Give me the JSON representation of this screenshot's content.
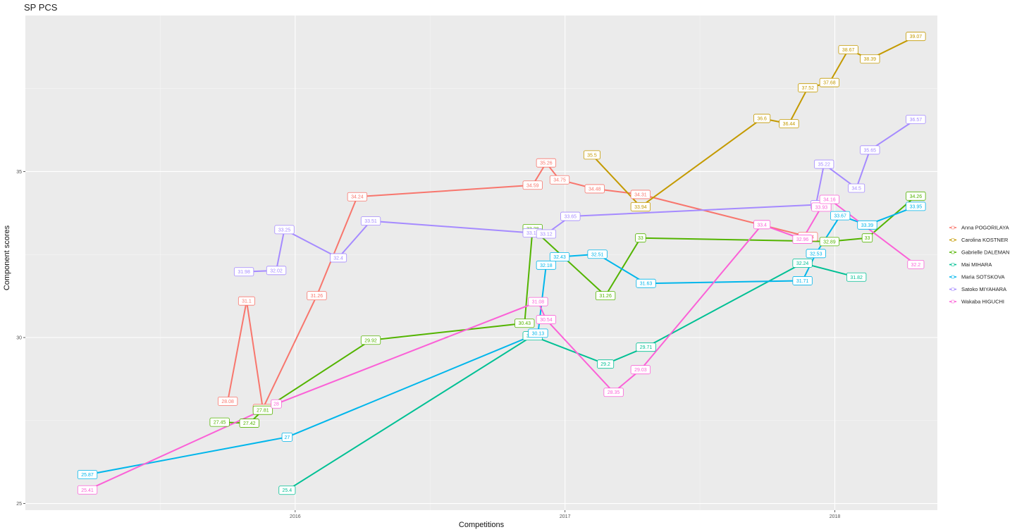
{
  "chart_data": {
    "type": "line",
    "title": "SP PCS",
    "xlabel": "Competitions",
    "ylabel": "Component scores",
    "x_ticks": [
      2016,
      2017,
      2018
    ],
    "y_ticks": [
      25,
      30,
      35
    ],
    "xlim": [
      2015.0,
      2018.38
    ],
    "ylim": [
      24.8,
      39.7
    ],
    "grid": true,
    "legend_position": "right",
    "series": [
      {
        "name": "Anna POGORILAYA",
        "color": "#F8766D",
        "points": [
          {
            "x": 2015.75,
            "y": 28.08,
            "label": "28.08"
          },
          {
            "x": 2015.82,
            "y": 31.1,
            "label": "31.1"
          },
          {
            "x": 2015.88,
            "y": 27.86,
            "label": "27.86"
          },
          {
            "x": 2016.08,
            "y": 31.26,
            "label": "31.26"
          },
          {
            "x": 2016.23,
            "y": 34.24,
            "label": "34.24"
          },
          {
            "x": 2016.88,
            "y": 34.59,
            "label": "34.59"
          },
          {
            "x": 2016.93,
            "y": 35.26,
            "label": "35.26"
          },
          {
            "x": 2016.98,
            "y": 34.75,
            "label": "34.75"
          },
          {
            "x": 2017.11,
            "y": 34.48,
            "label": "34.48"
          },
          {
            "x": 2017.28,
            "y": 34.31,
            "label": "34.31"
          },
          {
            "x": 2017.9,
            "y": 33.04,
            "label": "33.04"
          }
        ]
      },
      {
        "name": "Carolina KOSTNER",
        "color": "#C49A00",
        "points": [
          {
            "x": 2017.1,
            "y": 35.5,
            "label": "35.5"
          },
          {
            "x": 2017.28,
            "y": 33.94,
            "label": "33.94"
          },
          {
            "x": 2017.73,
            "y": 36.6,
            "label": "36.6"
          },
          {
            "x": 2017.83,
            "y": 36.44,
            "label": "36.44"
          },
          {
            "x": 2017.9,
            "y": 37.52,
            "label": "37.52"
          },
          {
            "x": 2017.98,
            "y": 37.68,
            "label": "37.68"
          },
          {
            "x": 2018.05,
            "y": 38.67,
            "label": "38.67"
          },
          {
            "x": 2018.13,
            "y": 38.39,
            "label": "38.39"
          },
          {
            "x": 2018.3,
            "y": 39.07,
            "label": "39.07"
          }
        ]
      },
      {
        "name": "Gabrielle DALEMAN",
        "color": "#53B400",
        "points": [
          {
            "x": 2015.72,
            "y": 27.45,
            "label": "27.45"
          },
          {
            "x": 2015.83,
            "y": 27.42,
            "label": "27.42"
          },
          {
            "x": 2015.88,
            "y": 27.81,
            "label": "27.81"
          },
          {
            "x": 2016.28,
            "y": 29.92,
            "label": "29.92"
          },
          {
            "x": 2016.85,
            "y": 30.43,
            "label": "30.43"
          },
          {
            "x": 2016.88,
            "y": 33.28,
            "label": "33.28"
          },
          {
            "x": 2017.15,
            "y": 31.26,
            "label": "31.26"
          },
          {
            "x": 2017.28,
            "y": 33,
            "label": "33"
          },
          {
            "x": 2017.98,
            "y": 32.89,
            "label": "32.89"
          },
          {
            "x": 2018.12,
            "y": 33,
            "label": "33"
          },
          {
            "x": 2018.3,
            "y": 34.26,
            "label": "34.26"
          }
        ]
      },
      {
        "name": "Mai MIHARA",
        "color": "#00C094",
        "points": [
          {
            "x": 2015.97,
            "y": 25.4,
            "label": "25.4"
          },
          {
            "x": 2016.88,
            "y": 30.05,
            "label": "30.05"
          },
          {
            "x": 2017.15,
            "y": 29.2,
            "label": "29.2"
          },
          {
            "x": 2017.3,
            "y": 29.71,
            "label": "29.71"
          },
          {
            "x": 2017.88,
            "y": 32.24,
            "label": "32.24"
          },
          {
            "x": 2018.08,
            "y": 31.82,
            "label": "31.82"
          }
        ]
      },
      {
        "name": "Maria SOTSKOVA",
        "color": "#00B6EB",
        "points": [
          {
            "x": 2015.23,
            "y": 25.87,
            "label": "25.87"
          },
          {
            "x": 2015.97,
            "y": 27,
            "label": "27"
          },
          {
            "x": 2016.9,
            "y": 30.13,
            "label": "30.13"
          },
          {
            "x": 2016.93,
            "y": 32.18,
            "label": "32.18"
          },
          {
            "x": 2016.98,
            "y": 32.43,
            "label": "32.43"
          },
          {
            "x": 2017.12,
            "y": 32.51,
            "label": "32.51"
          },
          {
            "x": 2017.3,
            "y": 31.63,
            "label": "31.63"
          },
          {
            "x": 2017.88,
            "y": 31.71,
            "label": "31.71"
          },
          {
            "x": 2017.93,
            "y": 32.53,
            "label": "32.53"
          },
          {
            "x": 2018.02,
            "y": 33.67,
            "label": "33.67"
          },
          {
            "x": 2018.12,
            "y": 33.39,
            "label": "33.39"
          },
          {
            "x": 2018.3,
            "y": 33.95,
            "label": "33.95"
          }
        ]
      },
      {
        "name": "Satoko MIYAHARA",
        "color": "#A58AFF",
        "points": [
          {
            "x": 2015.81,
            "y": 31.98,
            "label": "31.98"
          },
          {
            "x": 2015.93,
            "y": 32.02,
            "label": "32.02"
          },
          {
            "x": 2015.96,
            "y": 33.25,
            "label": "33.25"
          },
          {
            "x": 2016.16,
            "y": 32.4,
            "label": "32.4"
          },
          {
            "x": 2016.28,
            "y": 33.51,
            "label": "33.51"
          },
          {
            "x": 2016.88,
            "y": 33.15,
            "label": "33.15"
          },
          {
            "x": 2016.93,
            "y": 33.12,
            "label": "33.12"
          },
          {
            "x": 2017.02,
            "y": 33.65,
            "label": "33.65"
          },
          {
            "x": 2017.93,
            "y": 34,
            "label": "34"
          },
          {
            "x": 2017.96,
            "y": 35.22,
            "label": "35.22"
          },
          {
            "x": 2018.08,
            "y": 34.5,
            "label": "34.5"
          },
          {
            "x": 2018.13,
            "y": 35.65,
            "label": "35.65"
          },
          {
            "x": 2018.3,
            "y": 36.57,
            "label": "36.57"
          }
        ]
      },
      {
        "name": "Wakaba HIGUCHI",
        "color": "#FB61D7",
        "points": [
          {
            "x": 2015.23,
            "y": 25.41,
            "label": "25.41"
          },
          {
            "x": 2015.93,
            "y": 28,
            "label": "28"
          },
          {
            "x": 2016.9,
            "y": 31.08,
            "label": "31.08"
          },
          {
            "x": 2016.93,
            "y": 30.54,
            "label": "30.54"
          },
          {
            "x": 2017.18,
            "y": 28.35,
            "label": "28.35"
          },
          {
            "x": 2017.28,
            "y": 29.03,
            "label": "29.03"
          },
          {
            "x": 2017.73,
            "y": 33.4,
            "label": "33.4"
          },
          {
            "x": 2017.88,
            "y": 32.96,
            "label": "32.96"
          },
          {
            "x": 2017.95,
            "y": 33.93,
            "label": "33.93"
          },
          {
            "x": 2017.98,
            "y": 34.16,
            "label": "34.16"
          },
          {
            "x": 2018.3,
            "y": 32.2,
            "label": "32.2"
          }
        ]
      }
    ]
  }
}
